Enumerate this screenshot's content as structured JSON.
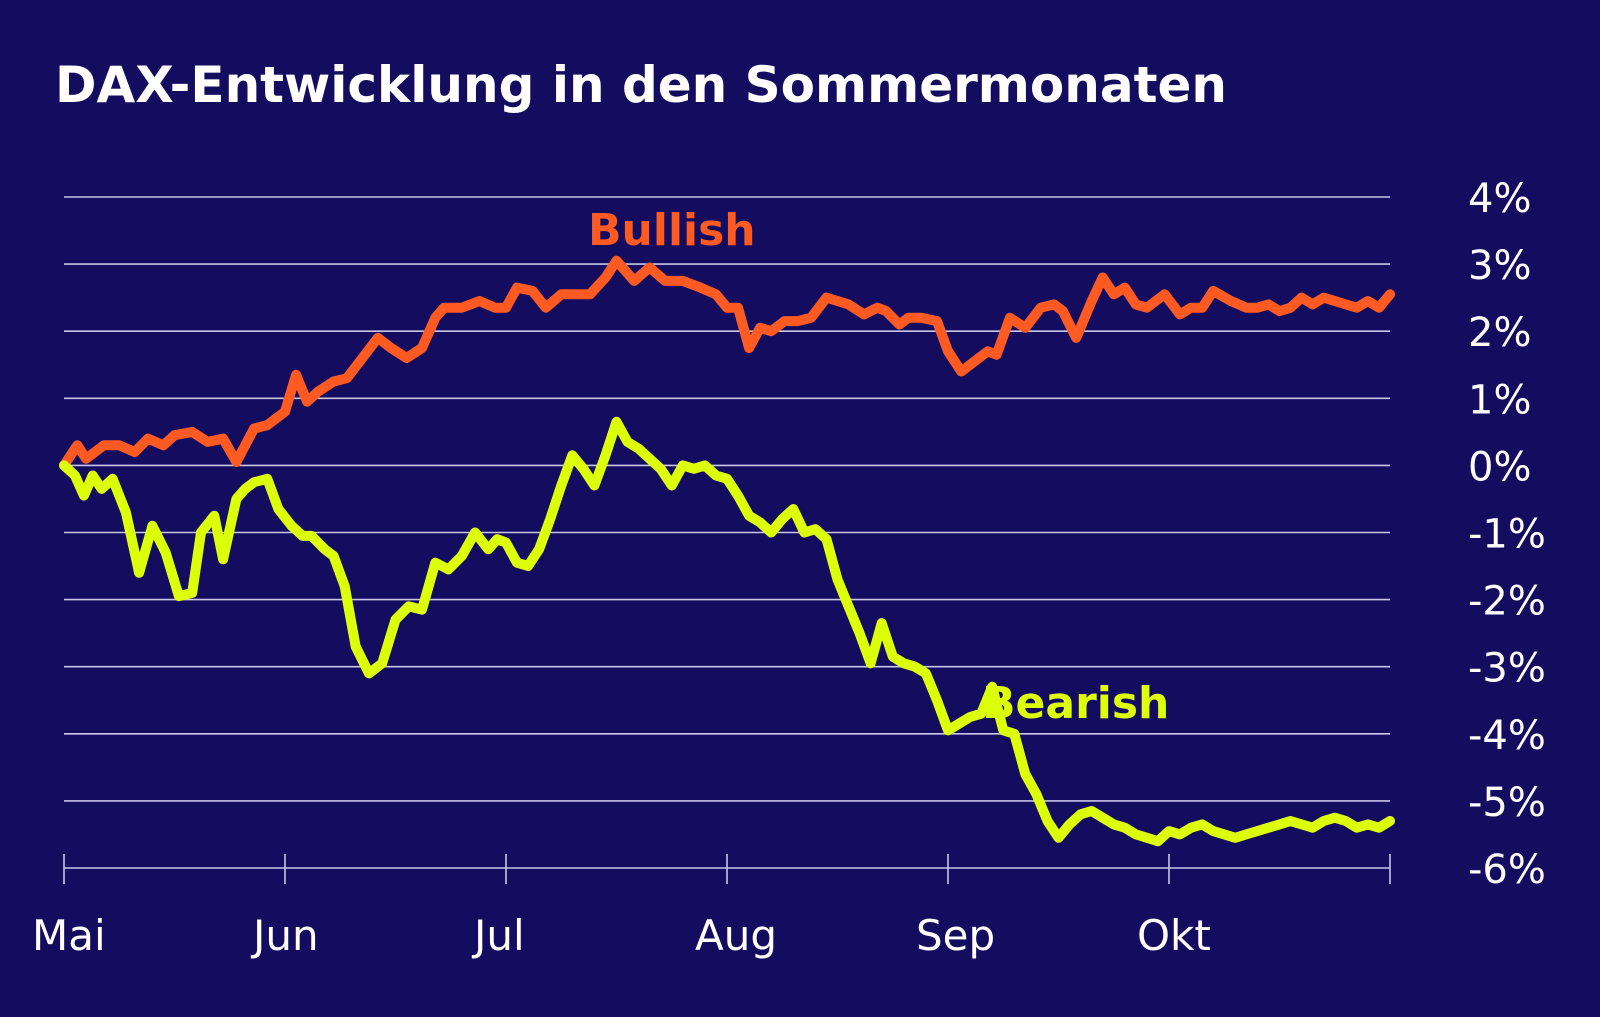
{
  "colors": {
    "background": "#140c5e",
    "grid": "#c9c6e8",
    "text": "#ffffff",
    "bullish": "#ff5a22",
    "bearish": "#dcff0a"
  },
  "chart_data": {
    "type": "line",
    "title": "DAX-Entwicklung in den Sommermonaten",
    "xlabel": "",
    "ylabel": "",
    "x_ticks": [
      "Mai",
      "Jun",
      "Jul",
      "Aug",
      "Sep",
      "Okt"
    ],
    "xlim": [
      "Mai",
      "Nov"
    ],
    "ylim": [
      -6,
      4
    ],
    "y_ticks": [
      "4%",
      "3%",
      "2%",
      "1%",
      "0%",
      "-1%",
      "-2%",
      "-3%",
      "-4%",
      "-5%",
      "-6%"
    ],
    "y_tick_values": [
      4,
      3,
      2,
      1,
      0,
      -1,
      -2,
      -3,
      -4,
      -5,
      -6
    ],
    "y_axis_position": "right",
    "grid": true,
    "legend": "inline labels",
    "series": [
      {
        "name": "Bullish",
        "label": "Bullish",
        "color": "#ff5a22",
        "x": [
          0.0,
          0.06,
          0.1,
          0.18,
          0.25,
          0.32,
          0.38,
          0.45,
          0.5,
          0.58,
          0.65,
          0.72,
          0.78,
          0.82,
          0.86,
          0.92,
          1.0,
          1.05,
          1.1,
          1.15,
          1.22,
          1.28,
          1.35,
          1.42,
          1.48,
          1.55,
          1.62,
          1.68,
          1.72,
          1.8,
          1.88,
          1.95,
          2.0,
          2.05,
          2.12,
          2.18,
          2.25,
          2.32,
          2.38,
          2.45,
          2.5,
          2.58,
          2.65,
          2.72,
          2.8,
          2.88,
          2.95,
          3.0,
          3.05,
          3.1,
          3.15,
          3.2,
          3.26,
          3.32,
          3.38,
          3.45,
          3.5,
          3.55,
          3.62,
          3.68,
          3.72,
          3.78,
          3.82,
          3.88,
          3.95,
          4.0,
          4.06,
          4.12,
          4.18,
          4.22,
          4.28,
          4.35,
          4.42,
          4.48,
          4.52,
          4.58,
          4.65,
          4.7,
          4.75,
          4.8,
          4.85,
          4.9,
          4.98,
          5.05,
          5.1,
          5.15,
          5.2,
          5.28,
          5.35,
          5.4,
          5.45,
          5.5,
          5.55,
          5.6,
          5.65,
          5.7,
          5.75,
          5.8,
          5.85,
          5.9,
          5.95,
          6.0
        ],
        "values": [
          0.0,
          0.3,
          0.1,
          0.3,
          0.3,
          0.2,
          0.4,
          0.3,
          0.45,
          0.5,
          0.35,
          0.4,
          0.05,
          0.3,
          0.55,
          0.6,
          0.8,
          1.35,
          0.95,
          1.1,
          1.25,
          1.3,
          1.6,
          1.9,
          1.75,
          1.6,
          1.75,
          2.2,
          2.35,
          2.35,
          2.45,
          2.35,
          2.35,
          2.65,
          2.6,
          2.35,
          2.55,
          2.55,
          2.55,
          2.8,
          3.05,
          2.75,
          2.95,
          2.75,
          2.75,
          2.65,
          2.55,
          2.35,
          2.35,
          1.75,
          2.05,
          2.0,
          2.15,
          2.15,
          2.2,
          2.5,
          2.45,
          2.4,
          2.25,
          2.35,
          2.3,
          2.1,
          2.2,
          2.2,
          2.15,
          1.7,
          1.4,
          1.55,
          1.7,
          1.65,
          2.2,
          2.05,
          2.35,
          2.4,
          2.3,
          1.9,
          2.45,
          2.8,
          2.55,
          2.65,
          2.4,
          2.35,
          2.55,
          2.25,
          2.35,
          2.35,
          2.6,
          2.45,
          2.35,
          2.35,
          2.4,
          2.3,
          2.35,
          2.5,
          2.4,
          2.5,
          2.45,
          2.4,
          2.35,
          2.45,
          2.35,
          2.55
        ]
      },
      {
        "name": "Bearish",
        "label": "Bearish",
        "color": "#dcff0a",
        "x": [
          0.0,
          0.05,
          0.09,
          0.13,
          0.17,
          0.22,
          0.28,
          0.34,
          0.4,
          0.46,
          0.52,
          0.58,
          0.62,
          0.68,
          0.72,
          0.78,
          0.82,
          0.86,
          0.92,
          0.97,
          1.03,
          1.08,
          1.12,
          1.18,
          1.22,
          1.27,
          1.32,
          1.38,
          1.44,
          1.5,
          1.56,
          1.62,
          1.68,
          1.74,
          1.8,
          1.86,
          1.92,
          1.96,
          2.0,
          2.05,
          2.1,
          2.15,
          2.2,
          2.25,
          2.3,
          2.35,
          2.4,
          2.45,
          2.5,
          2.55,
          2.6,
          2.65,
          2.7,
          2.75,
          2.8,
          2.85,
          2.9,
          2.95,
          3.0,
          3.05,
          3.1,
          3.15,
          3.2,
          3.25,
          3.3,
          3.35,
          3.4,
          3.45,
          3.5,
          3.55,
          3.6,
          3.65,
          3.7,
          3.75,
          3.8,
          3.85,
          3.9,
          3.95,
          4.0,
          4.05,
          4.1,
          4.15,
          4.2,
          4.25,
          4.3,
          4.35,
          4.4,
          4.45,
          4.5,
          4.55,
          4.6,
          4.65,
          4.7,
          4.75,
          4.8,
          4.85,
          4.9,
          4.95,
          5.0,
          5.05,
          5.1,
          5.15,
          5.2,
          5.25,
          5.3,
          5.35,
          5.4,
          5.45,
          5.5,
          5.55,
          5.6,
          5.65,
          5.7,
          5.75,
          5.8,
          5.85,
          5.9,
          5.95,
          6.0
        ],
        "values": [
          0.0,
          -0.15,
          -0.45,
          -0.15,
          -0.35,
          -0.2,
          -0.7,
          -1.6,
          -0.9,
          -1.3,
          -1.95,
          -1.9,
          -1.0,
          -0.75,
          -1.4,
          -0.5,
          -0.35,
          -0.25,
          -0.2,
          -0.65,
          -0.9,
          -1.05,
          -1.05,
          -1.25,
          -1.35,
          -1.8,
          -2.7,
          -3.1,
          -2.95,
          -2.3,
          -2.1,
          -2.15,
          -1.45,
          -1.55,
          -1.35,
          -1.0,
          -1.25,
          -1.1,
          -1.15,
          -1.45,
          -1.5,
          -1.25,
          -0.8,
          -0.3,
          0.15,
          -0.05,
          -0.3,
          0.15,
          0.65,
          0.35,
          0.25,
          0.1,
          -0.05,
          -0.3,
          0.0,
          -0.05,
          0.0,
          -0.15,
          -0.2,
          -0.45,
          -0.75,
          -0.85,
          -1.0,
          -0.8,
          -0.65,
          -1.0,
          -0.95,
          -1.1,
          -1.7,
          -2.1,
          -2.5,
          -2.95,
          -2.35,
          -2.85,
          -2.95,
          -3.0,
          -3.1,
          -3.5,
          -3.95,
          -3.85,
          -3.75,
          -3.7,
          -3.3,
          -3.95,
          -4.0,
          -4.6,
          -4.9,
          -5.3,
          -5.55,
          -5.35,
          -5.2,
          -5.15,
          -5.25,
          -5.35,
          -5.4,
          -5.5,
          -5.55,
          -5.6,
          -5.45,
          -5.5,
          -5.4,
          -5.35,
          -5.45,
          -5.5,
          -5.55,
          -5.5,
          -5.45,
          -5.4,
          -5.35,
          -5.3,
          -5.35,
          -5.4,
          -5.3,
          -5.25,
          -5.3,
          -5.4,
          -5.35,
          -5.4,
          -5.3
        ]
      }
    ]
  }
}
